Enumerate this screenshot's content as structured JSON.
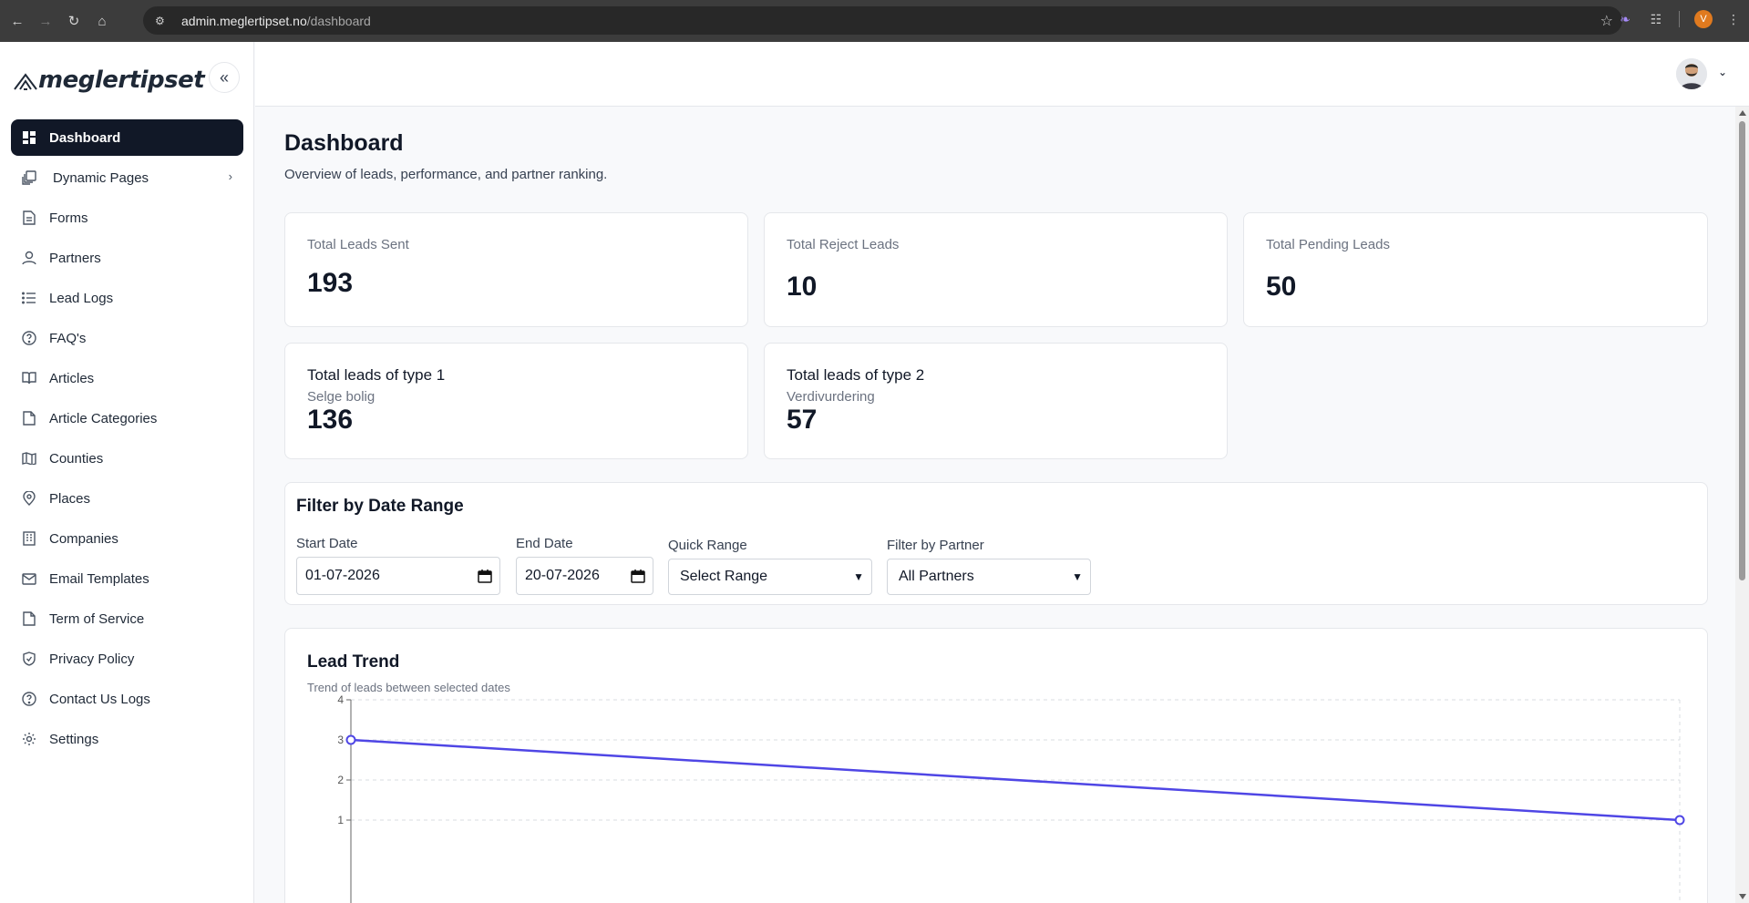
{
  "browser": {
    "url_host": "admin.meglertipset.no",
    "url_path": "/dashboard",
    "profile_initial": "V"
  },
  "sidebar": {
    "logo_text": "meglertipset",
    "items": [
      {
        "label": "Dashboard",
        "icon": "dashboard-icon",
        "active": true
      },
      {
        "label": "Dynamic Pages",
        "icon": "pages-icon",
        "has_children": true
      },
      {
        "label": "Forms",
        "icon": "form-icon"
      },
      {
        "label": "Partners",
        "icon": "user-icon"
      },
      {
        "label": "Lead Logs",
        "icon": "list-icon"
      },
      {
        "label": "FAQ's",
        "icon": "help-icon"
      },
      {
        "label": "Articles",
        "icon": "book-icon"
      },
      {
        "label": "Article Categories",
        "icon": "file-icon"
      },
      {
        "label": "Counties",
        "icon": "map-icon"
      },
      {
        "label": "Places",
        "icon": "pin-icon"
      },
      {
        "label": "Companies",
        "icon": "building-icon"
      },
      {
        "label": "Email Templates",
        "icon": "mail-icon"
      },
      {
        "label": "Term of Service",
        "icon": "file-icon"
      },
      {
        "label": "Privacy Policy",
        "icon": "shield-icon"
      },
      {
        "label": "Contact Us Logs",
        "icon": "help-icon"
      },
      {
        "label": "Settings",
        "icon": "gear-icon"
      }
    ]
  },
  "page": {
    "title": "Dashboard",
    "subtitle": "Overview of leads, performance, and partner ranking."
  },
  "stats": {
    "sent": {
      "label": "Total Leads Sent",
      "value": "193"
    },
    "reject": {
      "label": "Total Reject Leads",
      "value": "10"
    },
    "pending": {
      "label": "Total Pending Leads",
      "value": "50"
    },
    "type1": {
      "label": "Total leads of type 1",
      "sub": "Selge bolig",
      "value": "136"
    },
    "type2": {
      "label": "Total leads of type 2",
      "sub": "Verdivurdering",
      "value": "57"
    }
  },
  "filters": {
    "title": "Filter by Date Range",
    "start_label": "Start Date",
    "start_value": "01-07-2026",
    "end_label": "End Date",
    "end_value": "20-07-2026",
    "quick_label": "Quick Range",
    "quick_value": "Select Range",
    "partner_label": "Filter by Partner",
    "partner_value": "All Partners"
  },
  "trend": {
    "title": "Lead Trend",
    "subtitle": "Trend of leads between selected dates"
  },
  "chart_data": {
    "type": "line",
    "title": "Lead Trend",
    "ylim": [
      0,
      4
    ],
    "yticks": [
      1,
      2,
      3,
      4
    ],
    "grid": true,
    "series": [
      {
        "values": [
          3,
          1
        ],
        "color": "#4f46e5"
      }
    ]
  }
}
